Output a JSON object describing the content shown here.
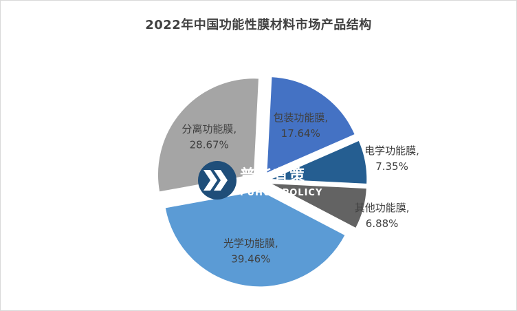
{
  "chart_data": {
    "type": "pie",
    "title": "2022年中国功能性膜材料市场产品结构",
    "slices": [
      {
        "name": "包装功能膜",
        "value": 17.64,
        "label": "17.64%",
        "color": "#4472C4"
      },
      {
        "name": "电学功能膜",
        "value": 7.35,
        "label": "7.35%",
        "color": "#255E91"
      },
      {
        "name": "其他功能膜",
        "value": 6.88,
        "label": "6.88%",
        "color": "#636363"
      },
      {
        "name": "光学功能膜",
        "value": 39.46,
        "label": "39.46%",
        "color": "#5B9BD5"
      },
      {
        "name": "分离功能膜",
        "value": 28.67,
        "label": "28.67%",
        "color": "#A5A5A5"
      }
    ],
    "legend": "none",
    "label_separator": ","
  },
  "watermark": {
    "cn": "普华有策",
    "en": "PUHUA POLICY",
    "badge_color": "#1F4E79"
  }
}
